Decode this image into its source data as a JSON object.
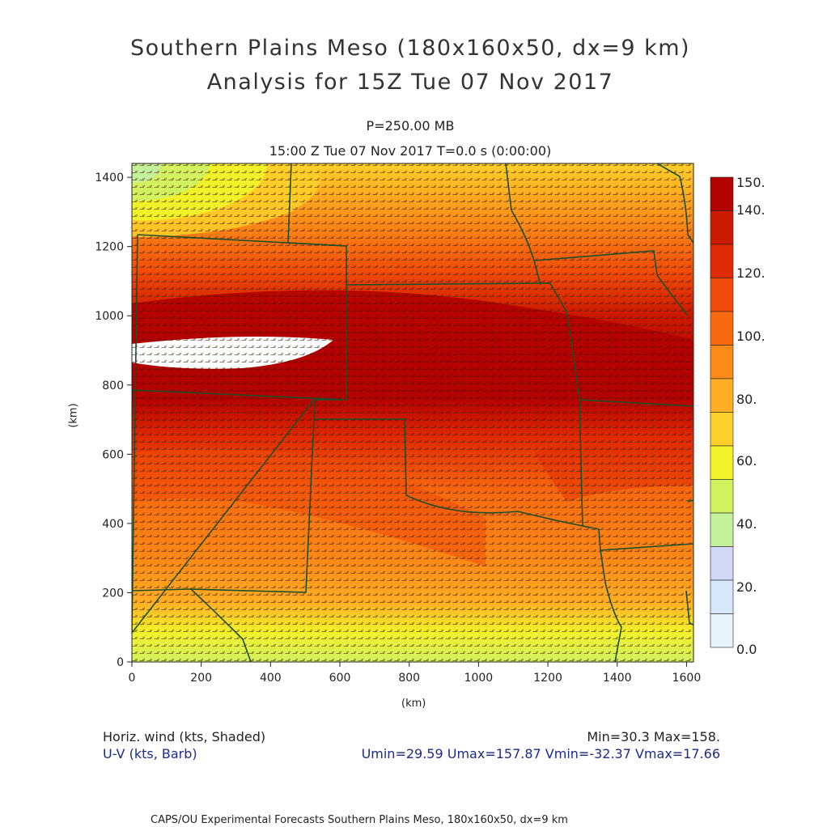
{
  "title_line1": "Southern Plains Meso (180x160x50, dx=9 km)",
  "title_line2": "Analysis for 15Z Tue 07 Nov 2017",
  "level": "P=250.00 MB",
  "time_line": "15:00 Z Tue 07 Nov 2017    T=0.0 s (0:00:00)",
  "x_axis_label": "(km)",
  "y_axis_label": "(km)",
  "x_ticks": [
    "0",
    "200",
    "400",
    "600",
    "800",
    "1000",
    "1200",
    "1400",
    "1600"
  ],
  "y_ticks": [
    "0",
    "200",
    "400",
    "600",
    "800",
    "1000",
    "1200",
    "1400"
  ],
  "colorbar_labels": [
    "150.",
    "140.",
    "120.",
    "100.",
    "80.",
    "60.",
    "40.",
    "20.",
    "0.0"
  ],
  "colorbar_colors": [
    "#b30000",
    "#cc1a00",
    "#e02a05",
    "#f04a0a",
    "#f76a10",
    "#fb8a18",
    "#ffae25",
    "#ffd02a",
    "#f2f22a",
    "#d2f260",
    "#c4f29a",
    "#d4d8f8",
    "#d6e8fb",
    "#e8f4fd"
  ],
  "field_label": "Horiz. wind (kts, Shaded)",
  "vector_label": "U-V (kts, Barb)",
  "minmax": "Min=30.3 Max=158.",
  "uv_stats": "Umin=29.59 Umax=157.87 Vmin=-32.37 Vmax=17.66",
  "footer": "CAPS/OU Experimental Forecasts  Southern Plains Meso, 180x160x50, dx=9 km",
  "map_data": {
    "domain_km": {
      "x": [
        0,
        1620
      ],
      "y": [
        0,
        1440
      ]
    },
    "jet_core_max_kts": 158,
    "field_min_kts": 30.3,
    "border_color": "#1e4d2a"
  }
}
